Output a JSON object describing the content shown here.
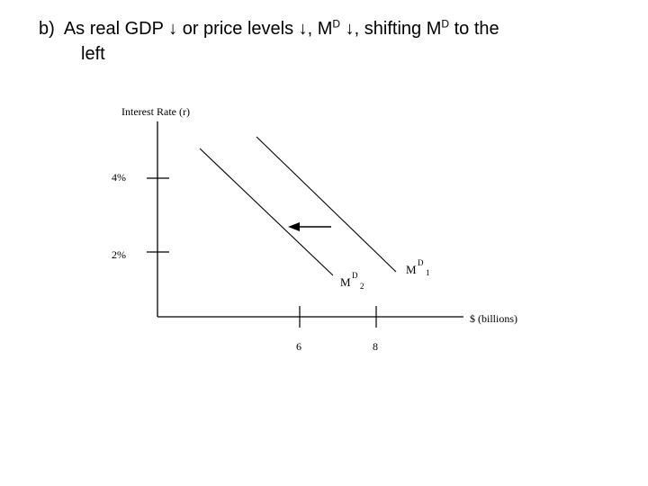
{
  "slide": {
    "prefix": "b)",
    "text_a": "As real GDP ↓ or price levels ↓, M",
    "sup_a": "D",
    "text_b": " ↓, shifting M",
    "sup_b": "D",
    "text_c": " to the",
    "line2": "left"
  },
  "diagram": {
    "y_axis_label": "Interest Rate (r)",
    "x_axis_label": "$ (billions)",
    "y_ticks": [
      "4%",
      "2%"
    ],
    "x_ticks": [
      "6",
      "8"
    ],
    "curve1": {
      "base": "M",
      "sup": "D",
      "sub": "1"
    },
    "curve2": {
      "base": "M",
      "sup": "D",
      "sub": "2"
    },
    "arrow": "left"
  }
}
